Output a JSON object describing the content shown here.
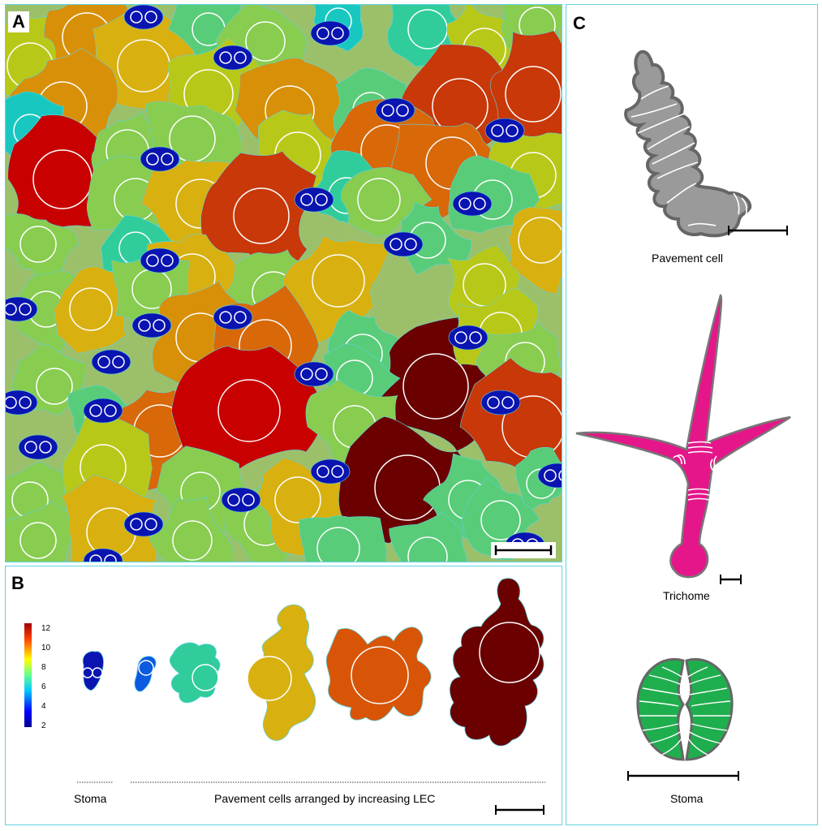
{
  "panels": {
    "a": {
      "label": "A"
    },
    "b": {
      "label": "B",
      "colorbar_ticks": [
        "12",
        "10",
        "8",
        "6",
        "4",
        "2"
      ],
      "stoma_caption": "Stoma",
      "pavement_caption": "Pavement cells arranged by increasing LEC"
    },
    "c": {
      "label": "C",
      "pavement_caption": "Pavement cell",
      "trichome_caption": "Trichome",
      "stoma_caption": "Stoma"
    }
  },
  "colors": {
    "panel_border": "#5fd3e0",
    "pavement_gray": "#9a9a9a",
    "trichome_pink": "#e5168a",
    "stoma_green": "#1fae4e",
    "stoma_blue": "#0a14b0",
    "lec_high": "#6a0000"
  },
  "colormap": [
    "#00008f",
    "#0000ff",
    "#0080ff",
    "#00ffff",
    "#80ff80",
    "#ffff00",
    "#ff8000",
    "#ff0000",
    "#800000"
  ]
}
